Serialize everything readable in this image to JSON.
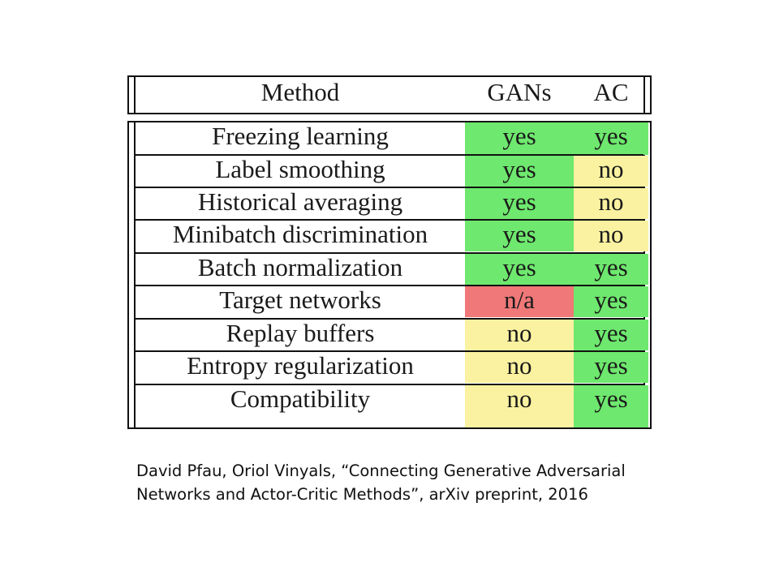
{
  "header": {
    "method": "Method",
    "gans": "GANs",
    "ac": "AC"
  },
  "rows": [
    {
      "method": "Freezing learning",
      "gans": "yes",
      "ac": "yes"
    },
    {
      "method": "Label smoothing",
      "gans": "yes",
      "ac": "no"
    },
    {
      "method": "Historical averaging",
      "gans": "yes",
      "ac": "no"
    },
    {
      "method": "Minibatch discrimination",
      "gans": "yes",
      "ac": "no"
    },
    {
      "method": "Batch normalization",
      "gans": "yes",
      "ac": "yes"
    },
    {
      "method": "Target networks",
      "gans": "n/a",
      "ac": "yes"
    },
    {
      "method": "Replay buffers",
      "gans": "no",
      "ac": "yes"
    },
    {
      "method": "Entropy regularization",
      "gans": "no",
      "ac": "yes"
    },
    {
      "method": "Compatibility",
      "gans": "no",
      "ac": "yes"
    }
  ],
  "colors": {
    "yes": "#6ee86e",
    "no": "#faf2a0",
    "n/a": "#f07878"
  },
  "citation": {
    "line1": "David Pfau, Oriol Vinyals, “Connecting Generative Adversarial",
    "line2": "Networks and Actor-Critic Methods”, arXiv preprint, 2016"
  }
}
